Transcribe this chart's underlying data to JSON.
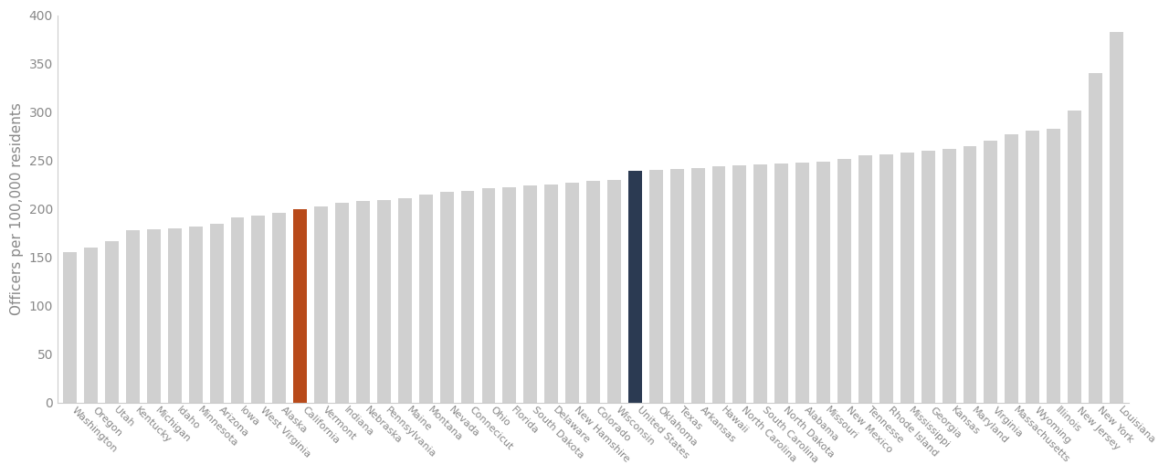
{
  "states": [
    "Washington",
    "Oregon",
    "Utah",
    "Kentucky",
    "Michigan",
    "Idaho",
    "Minnesota",
    "Arizona",
    "Iowa",
    "West Virginia",
    "Alaska",
    "California",
    "Vermont",
    "Indiana",
    "Nebraska",
    "Pennsylvania",
    "Maine",
    "Montana",
    "Nevada",
    "Connecicut",
    "Ohio",
    "Florida",
    "South Dakota",
    "Delaware",
    "New Hamshire",
    "Colorado",
    "Wisconsin",
    "United States",
    "Oklahoma",
    "Texas",
    "Arkansas",
    "Hawaii",
    "North Carolina",
    "South Carolina",
    "North Dakota",
    "Alabama",
    "Missouri",
    "New Mexico",
    "Tennesse",
    "Rhode Island",
    "Mississippi",
    "Georgia",
    "Kansas",
    "Maryland",
    "Virginia",
    "Massachusetts",
    "Wyoming",
    "Illinois",
    "New Jersey",
    "New York",
    "Louisiana"
  ],
  "values": [
    155,
    160,
    167,
    178,
    179,
    180,
    182,
    185,
    191,
    193,
    196,
    200,
    203,
    206,
    208,
    209,
    211,
    215,
    218,
    219,
    221,
    222,
    224,
    225,
    227,
    229,
    230,
    239,
    240,
    241,
    242,
    244,
    245,
    246,
    247,
    248,
    249,
    252,
    255,
    256,
    258,
    260,
    262,
    265,
    270,
    277,
    281,
    283,
    302,
    340,
    383
  ],
  "bar_color_default": "#d0d0d0",
  "bar_color_california": "#b84a1a",
  "bar_color_us": "#2b3a52",
  "california_index": 11,
  "us_index": 27,
  "ylabel": "Officers per 100,000 residents",
  "ylim": [
    0,
    400
  ],
  "yticks": [
    0,
    50,
    100,
    150,
    200,
    250,
    300,
    350,
    400
  ],
  "background_color": "#ffffff",
  "bar_width": 0.65,
  "text_color": "#888888",
  "label_fontsize": 8,
  "ylabel_fontsize": 11
}
